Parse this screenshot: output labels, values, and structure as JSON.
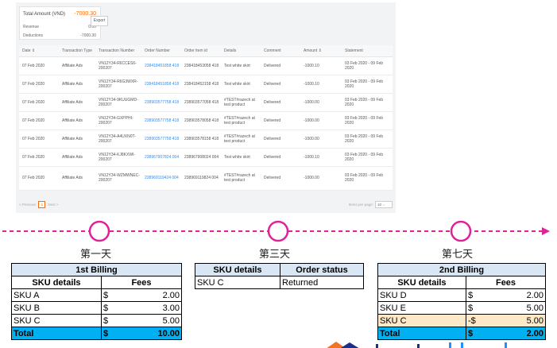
{
  "summary": {
    "total_label": "Total Amount (VND)",
    "total_value": "-7000.30",
    "revenue_label": "Revenue",
    "revenue_value": "0.00",
    "deductions_label": "Deductions",
    "deductions_value": "-7000.30"
  },
  "export_label": "Export",
  "columns": [
    "Date",
    "Transaction Type",
    "Transaction Number",
    "Order Number",
    "Order item id",
    "Details",
    "Comment",
    "Amount",
    "Statement"
  ],
  "rows": [
    {
      "date": "07 Feb 2020",
      "type": "Affiliate Ads",
      "txn": "VN12Y34-R6CCES6-200207",
      "order": "238418451858 418",
      "item": "238418453058 418",
      "details": "Test white skirt",
      "comment": "Delivered",
      "amount": "-1000.10",
      "statement": "03 Feb 2020 - 09 Feb 2020"
    },
    {
      "date": "07 Feb 2020",
      "type": "Affiliate Ads",
      "txn": "VN12Y34-R6G3WXR-200207",
      "order": "238418451858 418",
      "item": "238418452158 418",
      "details": "Test white skirt",
      "comment": "Delivered",
      "amount": "-1000.10",
      "statement": "03 Feb 2020 - 09 Feb 2020"
    },
    {
      "date": "07 Feb 2020",
      "type": "Affiliate Ads",
      "txn": "VN12Y34-9KUUGMD-200207",
      "order": "238903577758 418",
      "item": "238903577058 418",
      "details": "#TEST#razech at test product",
      "comment": "Delivered",
      "amount": "-1000.00",
      "statement": "03 Feb 2020 - 09 Feb 2020"
    },
    {
      "date": "07 Feb 2020",
      "type": "Affiliate Ads",
      "txn": "VN12Y34-GXPPHI-200207",
      "order": "238903577758 418",
      "item": "238903578058 418",
      "details": "#TEST#razech at test product",
      "comment": "Delivered",
      "amount": "-1000.00",
      "statement": "03 Feb 2020 - 09 Feb 2020"
    },
    {
      "date": "07 Feb 2020",
      "type": "Affiliate Ads",
      "txn": "VN12Y34-A4UXN0T-200207",
      "order": "238903577758 418",
      "item": "238903578158 418",
      "details": "#TEST#razech at test product",
      "comment": "Delivered",
      "amount": "-1000.00",
      "statement": "03 Feb 2020 - 09 Feb 2020"
    },
    {
      "date": "07 Feb 2020",
      "type": "Affiliate Ads",
      "txn": "VN12Y34-KJ8KXWI-200207",
      "order": "238967907824 004",
      "item": "238967908024 004",
      "details": "Test white skirt",
      "comment": "Delivered",
      "amount": "-1000.10",
      "statement": "03 Feb 2020 - 09 Feb 2020"
    },
    {
      "date": "07 Feb 2020",
      "type": "Affiliate Ads",
      "txn": "VN12Y34-WZMWNEC-200207",
      "order": "238969119424 004",
      "item": "238969119824 004",
      "details": "#TEST#razech at test product",
      "comment": "Delivered",
      "amount": "-1000.00",
      "statement": "03 Feb 2020 - 09 Feb 2020"
    }
  ],
  "pager": {
    "prev": "< Previous",
    "page": "1",
    "next": "Next >",
    "per_page_label": "Items per page:",
    "per_page_value": "10"
  },
  "days": {
    "d1": "第一天",
    "d3": "第三天",
    "d7": "第七天"
  },
  "billing1": {
    "title": "1st Billing",
    "col_sku": "SKU details",
    "col_fees": "Fees",
    "rows": [
      {
        "sku": "SKU A",
        "cur": "$",
        "fee": "2.00"
      },
      {
        "sku": "SKU B",
        "cur": "$",
        "fee": "3.00"
      },
      {
        "sku": "SKU C",
        "cur": "$",
        "fee": "5.00"
      }
    ],
    "total": {
      "label": "Total",
      "cur": "$",
      "fee": "10.00"
    }
  },
  "status_table": {
    "col_sku": "SKU details",
    "col_status": "Order status",
    "row": {
      "sku": "SKU C",
      "status": "Returned"
    }
  },
  "billing2": {
    "title": "2nd Billing",
    "col_sku": "SKU details",
    "col_fees": "Fees",
    "rows": [
      {
        "sku": "SKU D",
        "cur": "$",
        "fee": "2.00"
      },
      {
        "sku": "SKU E",
        "cur": "$",
        "fee": "5.00"
      },
      {
        "sku": "SKU C",
        "cur": "-$",
        "fee": "5.00"
      }
    ],
    "total": {
      "label": "Total",
      "cur": "$",
      "fee": "2.00"
    }
  },
  "colors": {
    "accent": "#ff6a00",
    "timeline": "#e0219a",
    "link": "#2f8cf0",
    "total_fill": "#00b0f0",
    "header_fill": "#d9e7f4",
    "highlight": "#fde9c8"
  }
}
